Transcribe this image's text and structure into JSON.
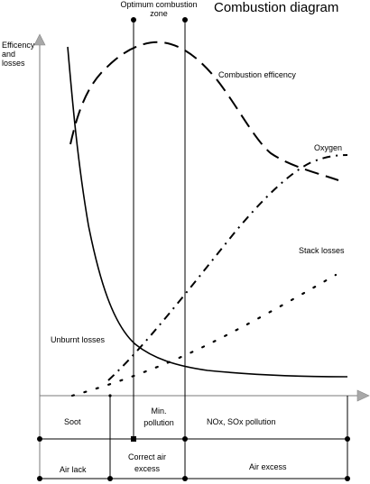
{
  "title": "Combustion diagram",
  "y_axis_label": [
    "Efficency",
    "and",
    "losses"
  ],
  "optimum_zone_label": [
    "Optimum combustion",
    "zone"
  ],
  "curves": {
    "efficiency": "Combustion efficency",
    "oxygen": "Oxygen",
    "stack_losses": "Stack losses",
    "unburnt_losses": "Unburnt losses"
  },
  "row1": {
    "soot": "Soot",
    "min_pollution": [
      "Min.",
      "pollution"
    ],
    "nox_sox": "NOx, SOx pollution"
  },
  "row2": {
    "air_lack": "Air lack",
    "correct_air": [
      "Correct air",
      "excess"
    ],
    "air_excess": "Air excess"
  }
}
